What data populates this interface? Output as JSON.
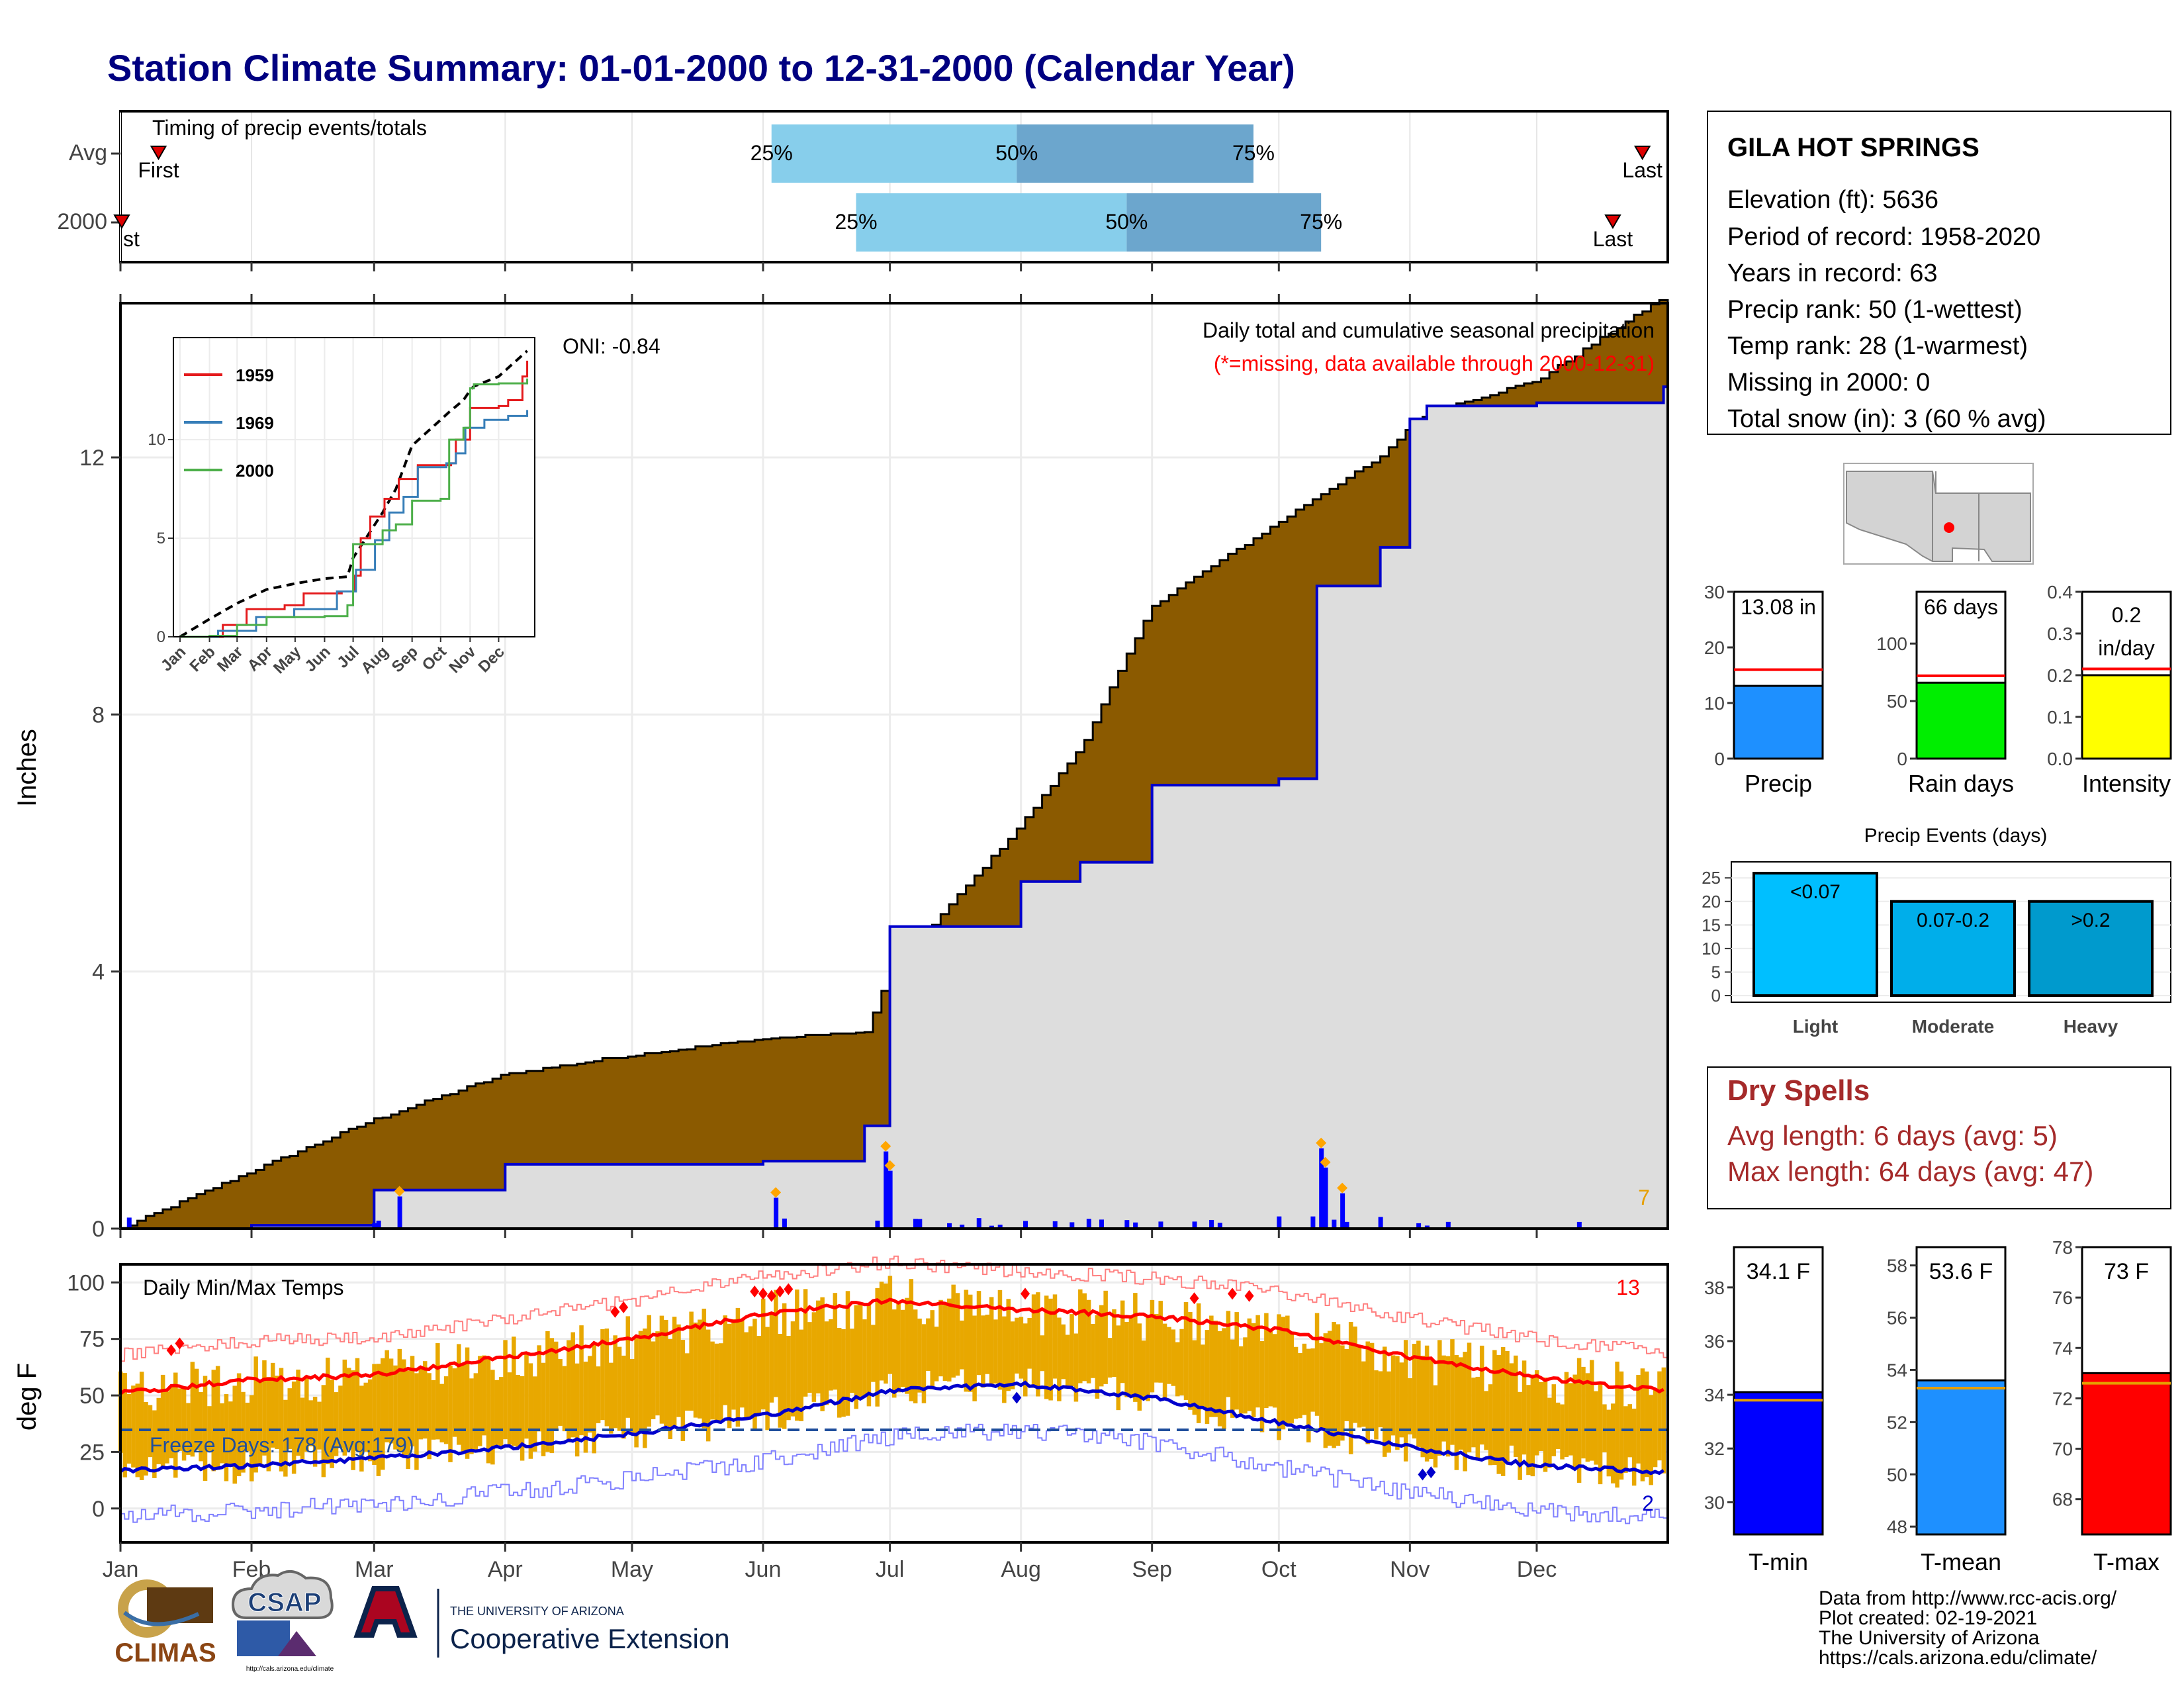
{
  "title": "Station Climate Summary: 01-01-2000 to 12-31-2000 (Calendar Year)",
  "colors": {
    "title": "#000080",
    "precip_fill": "#8B5A00",
    "normal_fill": "#DDDDDD",
    "obs_line": "#0000CC",
    "bar_light": "#87CEEB",
    "bar_dark": "#6CA6CD",
    "tmax": "#FF0000",
    "tmin": "#0000CC",
    "temp_bar": "#E8A800",
    "red_text": "#A52A2A"
  },
  "timing_panel": {
    "title": "Timing of precip events/totals",
    "rows": [
      "Avg",
      "2000"
    ],
    "labels": [
      "First",
      "Last",
      "25%",
      "50%",
      "75%"
    ],
    "avg": {
      "first": "Jan 10",
      "q25": "Jun 3",
      "q50": "Jul 31",
      "q75": "Sep 25",
      "last": "Dec 26"
    },
    "y2000": {
      "first": "Jan 1",
      "q25": "Jun 23",
      "q50": "Aug 26",
      "q75": "Oct 11",
      "last": "Dec 19"
    }
  },
  "station": {
    "name": "GILA HOT SPRINGS",
    "lines": [
      "Elevation (ft): 5636",
      "Period of record: 1958-2020",
      "Years in record: 63",
      "Precip rank: 50 (1-wettest)",
      "Temp rank: 28 (1-warmest)",
      "Missing in 2000: 0",
      "Total snow (in): 3 (60 % avg)"
    ]
  },
  "precip_panel": {
    "ylabel": "Inches",
    "title": "Daily total and cumulative seasonal precipitation",
    "missing_note": "(*=missing, data available through 2000-12-31)",
    "oni": "ONI: -0.84",
    "corner_count": "7",
    "yticks": [
      0,
      4,
      8,
      12
    ],
    "ylim": [
      0,
      14.4
    ]
  },
  "inset": {
    "legend": [
      "1959",
      "1969",
      "2000"
    ],
    "legend_colors": [
      "#E41A1C",
      "#377EB8",
      "#4DAF4A"
    ],
    "yticks": [
      0,
      5,
      10
    ],
    "months": [
      "Jan",
      "Feb",
      "Mar",
      "Apr",
      "May",
      "Jun",
      "Jul",
      "Aug",
      "Sep",
      "Oct",
      "Nov",
      "Dec"
    ]
  },
  "temp_panel": {
    "ylabel": "deg F",
    "title": "Daily Min/Max Temps",
    "freeze": "Freeze Days: 178 (Avg:179)",
    "count_high": "13",
    "count_low": "2",
    "yticks": [
      0,
      25,
      50,
      75,
      100
    ],
    "months": [
      "Jan",
      "Feb",
      "Mar",
      "Apr",
      "May",
      "Jun",
      "Jul",
      "Aug",
      "Sep",
      "Oct",
      "Nov",
      "Dec"
    ]
  },
  "small_bars": [
    {
      "label": "Precip",
      "value_label": "13.08 in",
      "color": "#1E90FF",
      "yticks": [
        0,
        10,
        20,
        30
      ]
    },
    {
      "label": "Rain days",
      "value_label": "66 days",
      "color": "#00EE00",
      "yticks": [
        0,
        50,
        100
      ]
    },
    {
      "label": "Intensity",
      "value_label_1": "0.2",
      "value_label_2": "in/day",
      "color": "#FFFF00",
      "yticks": [
        "0.0",
        "0.1",
        "0.2",
        "0.3",
        "0.4"
      ]
    }
  ],
  "events": {
    "title": "Precip Events (days)",
    "bars": [
      {
        "cat": "Light",
        "label": "<0.07",
        "color": "#00BFFF"
      },
      {
        "cat": "Moderate",
        "label": "0.07-0.2",
        "color": "#00AEEA"
      },
      {
        "cat": "Heavy",
        "label": ">0.2",
        "color": "#009ACD"
      }
    ],
    "yticks": [
      0,
      5,
      10,
      15,
      20,
      25
    ]
  },
  "dry_spells": {
    "title": "Dry Spells",
    "avg_line": "Avg length: 6 days (avg: 5)",
    "max_line": "Max length: 64 days (avg: 47)"
  },
  "temp_bars": [
    {
      "label": "T-min",
      "value_label": "34.1 F",
      "color": "#0000FF",
      "yticks": [
        30,
        32,
        34,
        36,
        38
      ]
    },
    {
      "label": "T-mean",
      "value_label": "53.6 F",
      "color": "#1E90FF",
      "yticks": [
        48,
        50,
        52,
        54,
        56,
        58
      ]
    },
    {
      "label": "T-max",
      "value_label": "73 F",
      "color": "#FF0000",
      "yticks": [
        68,
        70,
        72,
        74,
        76,
        78
      ]
    }
  ],
  "footer": {
    "climas": "CLIMAS",
    "csap": "CSAP",
    "csap_url": "http://cals.arizona.edu/climate",
    "ua_small": "THE UNIVERSITY OF ARIZONA",
    "ua_big": "Cooperative Extension",
    "credits": [
      "Data from http://www.rcc-acis.org/",
      "Plot created: 02-19-2021",
      "The University of Arizona",
      "https://cals.arizona.edu/climate/"
    ]
  },
  "chart_data": [
    {
      "type": "area",
      "title": "Daily total and cumulative seasonal precipitation",
      "ylabel": "Inches",
      "ylim": [
        0,
        14.4
      ],
      "x": [
        "Jan 1",
        "Feb 1",
        "Mar 1",
        "Apr 1",
        "May 1",
        "Jun 1",
        "Jun 25",
        "Jul 1",
        "Aug 1",
        "Aug 15",
        "Sep 1",
        "Oct 1",
        "Oct 10",
        "Oct 25",
        "Nov 1",
        "Nov 5",
        "Dec 1",
        "Dec 31"
      ],
      "series": [
        {
          "name": "Normal",
          "values": [
            0.0,
            0.9,
            1.7,
            2.4,
            2.7,
            2.95,
            3.05,
            4.0,
            6.3,
            7.5,
            9.7,
            11.0,
            11.4,
            12.0,
            12.5,
            12.7,
            13.2,
            14.5
          ]
        },
        {
          "name": "2000",
          "values": [
            0.0,
            0.05,
            0.6,
            1.0,
            1.0,
            1.05,
            1.6,
            4.7,
            5.4,
            5.7,
            6.9,
            7.0,
            10.0,
            10.6,
            12.6,
            12.8,
            12.85,
            13.1
          ]
        }
      ],
      "daily_bars": [
        {
          "x": "Mar 7",
          "value": 0.5
        },
        {
          "x": "Jun 4",
          "value": 0.48
        },
        {
          "x": "Jun 30",
          "value": 1.2
        },
        {
          "x": "Jul 1",
          "value": 0.9
        },
        {
          "x": "Oct 11",
          "value": 1.25
        },
        {
          "x": "Oct 12",
          "value": 0.95
        },
        {
          "x": "Oct 16",
          "value": 0.55
        }
      ]
    },
    {
      "type": "line",
      "title": "Daily Min/Max Temps",
      "ylabel": "deg F",
      "ylim": [
        -15,
        108
      ],
      "x": [
        "Jan 1",
        "Feb 1",
        "Mar 1",
        "Apr 1",
        "May 1",
        "Jun 1",
        "Jul 1",
        "Aug 1",
        "Sep 1",
        "Oct 1",
        "Nov 1",
        "Dec 1",
        "Dec 31"
      ],
      "series": [
        {
          "name": "Avg Max",
          "values": [
            51,
            57,
            59,
            67,
            75,
            86,
            92,
            88,
            85,
            79,
            67,
            58,
            52
          ]
        },
        {
          "name": "Avg Min",
          "values": [
            17,
            19,
            22,
            27,
            33,
            41,
            52,
            55,
            49,
            38,
            27,
            19,
            16
          ]
        }
      ]
    },
    {
      "type": "bar",
      "title": "Precip Events (days)",
      "categories": [
        "Light",
        "Moderate",
        "Heavy"
      ],
      "values": [
        26,
        20,
        20
      ]
    },
    {
      "type": "bar",
      "categories": [
        "Precip",
        "Rain days",
        "Intensity"
      ],
      "values": [
        13.08,
        66,
        0.2
      ],
      "averages": [
        16,
        72,
        0.215
      ]
    },
    {
      "type": "bar",
      "categories": [
        "T-min",
        "T-mean",
        "T-max"
      ],
      "values": [
        34.1,
        53.6,
        73
      ],
      "averages": [
        33.8,
        53.3,
        72.6
      ]
    }
  ]
}
